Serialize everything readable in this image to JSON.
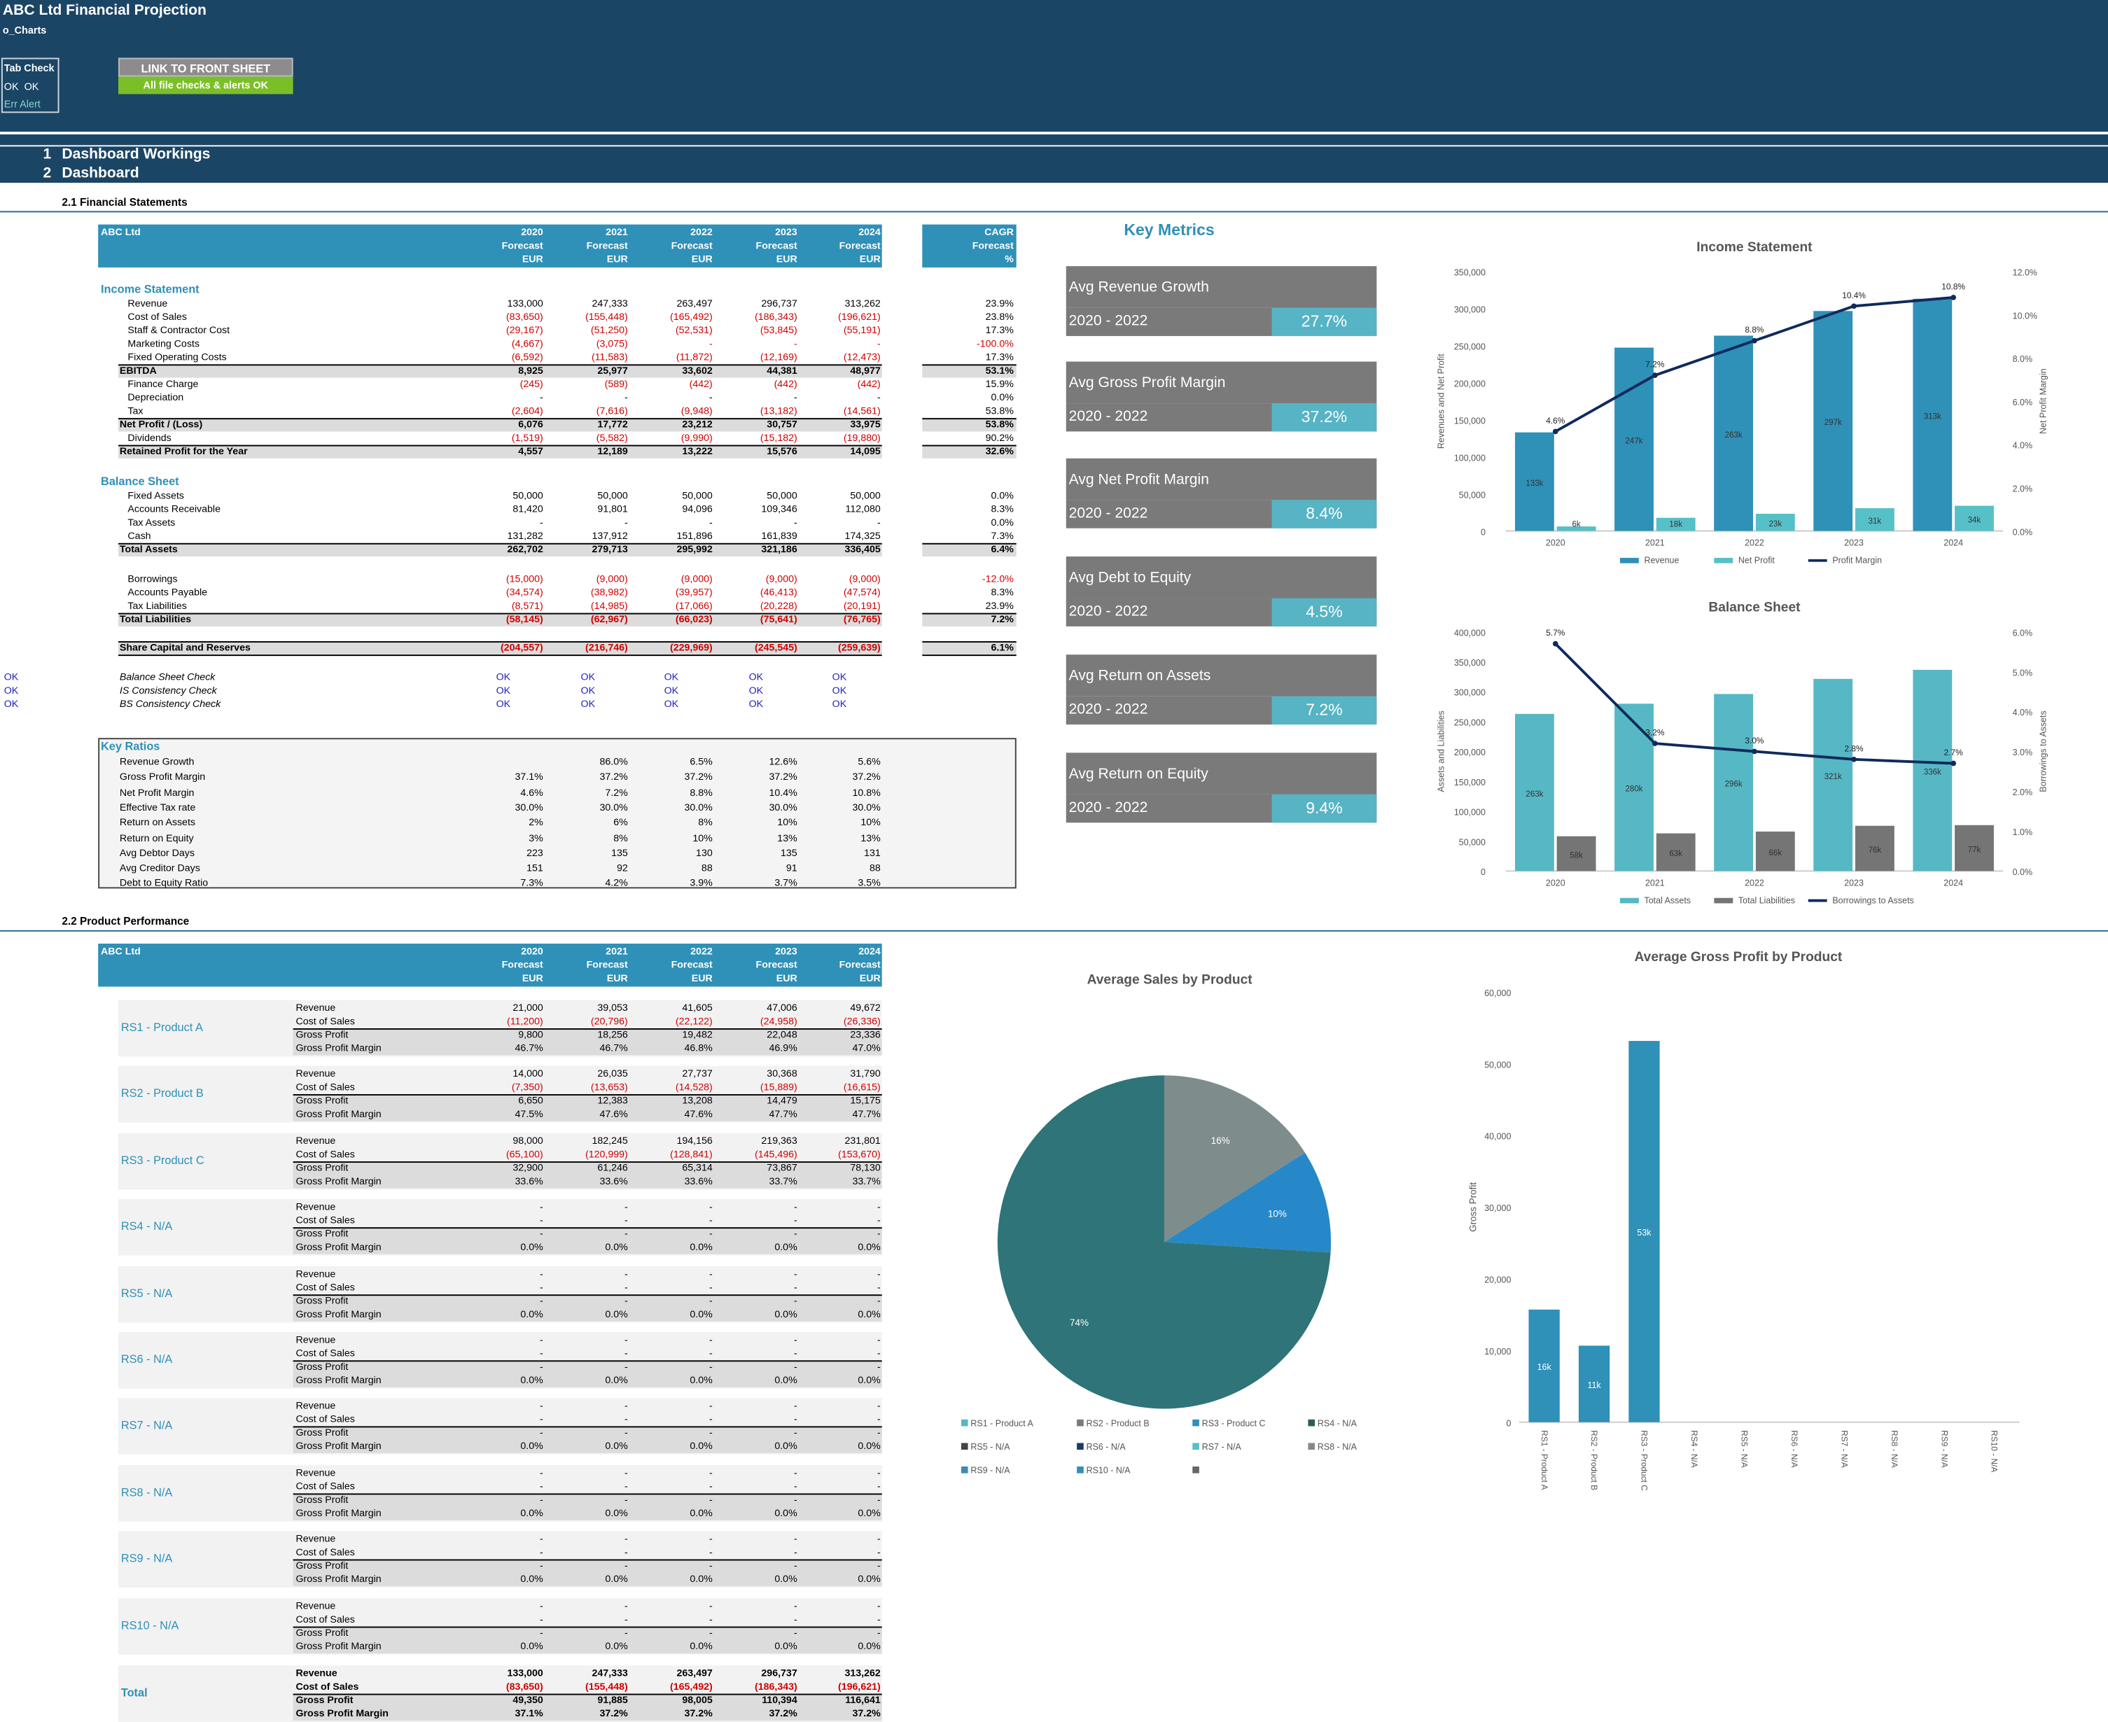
{
  "header": {
    "title": "ABC Ltd Financial Projection",
    "sheet": "o_Charts",
    "tab_check_label": "Tab Check",
    "tab_check_ok1": "OK",
    "tab_check_ok2": "OK",
    "err_alert": "Err Alert",
    "link_button": "LINK TO FRONT SHEET",
    "alert_status": "All file checks & alerts OK"
  },
  "nav": {
    "items": [
      {
        "num": "1",
        "label": "Dashboard Workings"
      },
      {
        "num": "2",
        "label": "Dashboard"
      }
    ]
  },
  "sections": {
    "fs": "2.1 Financial Statements",
    "pp": "2.2 Product Performance"
  },
  "fs": {
    "company": "ABC Ltd",
    "years": [
      "2020",
      "2021",
      "2022",
      "2023",
      "2024"
    ],
    "forecast": "Forecast",
    "eur": "EUR",
    "cagr": "CAGR",
    "pct": "%",
    "is_title": "Income Statement",
    "is_rows": [
      {
        "l": "Revenue",
        "v": [
          "133,000",
          "247,333",
          "263,497",
          "296,737",
          "313,262"
        ],
        "c": "23.9%"
      },
      {
        "l": "Cost of Sales",
        "v": [
          "(83,650)",
          "(155,448)",
          "(165,492)",
          "(186,343)",
          "(196,621)"
        ],
        "c": "23.8%",
        "red": true
      },
      {
        "l": "Staff & Contractor Cost",
        "v": [
          "(29,167)",
          "(51,250)",
          "(52,531)",
          "(53,845)",
          "(55,191)"
        ],
        "c": "17.3%",
        "red": true
      },
      {
        "l": "Marketing Costs",
        "v": [
          "(4,667)",
          "(3,075)",
          "-",
          "-",
          "-"
        ],
        "c": "-100.0%",
        "red": true
      },
      {
        "l": "Fixed Operating Costs",
        "v": [
          "(6,592)",
          "(11,583)",
          "(11,872)",
          "(12,169)",
          "(12,473)"
        ],
        "c": "17.3%",
        "red": true
      },
      {
        "l": "EBITDA",
        "v": [
          "8,925",
          "25,977",
          "33,602",
          "44,381",
          "48,977"
        ],
        "c": "53.1%",
        "total": true
      },
      {
        "l": "Finance Charge",
        "v": [
          "(245)",
          "(589)",
          "(442)",
          "(442)",
          "(442)"
        ],
        "c": "15.9%",
        "red": true
      },
      {
        "l": "Depreciation",
        "v": [
          "-",
          "-",
          "-",
          "-",
          "-"
        ],
        "c": "0.0%"
      },
      {
        "l": "Tax",
        "v": [
          "(2,604)",
          "(7,616)",
          "(9,948)",
          "(13,182)",
          "(14,561)"
        ],
        "c": "53.8%",
        "red": true
      },
      {
        "l": "Net Profit / (Loss)",
        "v": [
          "6,076",
          "17,772",
          "23,212",
          "30,757",
          "33,975"
        ],
        "c": "53.8%",
        "total": true
      },
      {
        "l": "Dividends",
        "v": [
          "(1,519)",
          "(5,582)",
          "(9,990)",
          "(15,182)",
          "(19,880)"
        ],
        "c": "90.2%",
        "red": true
      },
      {
        "l": "Retained Profit for the Year",
        "v": [
          "4,557",
          "12,189",
          "13,222",
          "15,576",
          "14,095"
        ],
        "c": "32.6%",
        "total": true
      }
    ],
    "bs_title": "Balance Sheet",
    "bs_rows": [
      {
        "l": "Fixed Assets",
        "v": [
          "50,000",
          "50,000",
          "50,000",
          "50,000",
          "50,000"
        ],
        "c": "0.0%"
      },
      {
        "l": "Accounts Receivable",
        "v": [
          "81,420",
          "91,801",
          "94,096",
          "109,346",
          "112,080"
        ],
        "c": "8.3%"
      },
      {
        "l": "Tax Assets",
        "v": [
          "-",
          "-",
          "-",
          "-",
          "-"
        ],
        "c": "0.0%"
      },
      {
        "l": "Cash",
        "v": [
          "131,282",
          "137,912",
          "151,896",
          "161,839",
          "174,325"
        ],
        "c": "7.3%"
      },
      {
        "l": "Total Assets",
        "v": [
          "262,702",
          "279,713",
          "295,992",
          "321,186",
          "336,405"
        ],
        "c": "6.4%",
        "total": true
      }
    ],
    "liab_rows": [
      {
        "l": "Borrowings",
        "v": [
          "(15,000)",
          "(9,000)",
          "(9,000)",
          "(9,000)",
          "(9,000)"
        ],
        "c": "-12.0%",
        "red": true
      },
      {
        "l": "Accounts Payable",
        "v": [
          "(34,574)",
          "(38,982)",
          "(39,957)",
          "(46,413)",
          "(47,574)"
        ],
        "c": "8.3%",
        "red": true
      },
      {
        "l": "Tax Liabilities",
        "v": [
          "(8,571)",
          "(14,985)",
          "(17,066)",
          "(20,228)",
          "(20,191)"
        ],
        "c": "23.9%",
        "red": true
      },
      {
        "l": "Total Liabilities",
        "v": [
          "(58,145)",
          "(62,967)",
          "(66,023)",
          "(75,641)",
          "(76,765)"
        ],
        "c": "7.2%",
        "total": true,
        "red": true
      }
    ],
    "equity": {
      "l": "Share Capital and Reserves",
      "v": [
        "(204,557)",
        "(216,746)",
        "(229,969)",
        "(245,545)",
        "(259,639)"
      ],
      "c": "6.1%"
    },
    "checks": [
      {
        "l": "Balance Sheet Check",
        "side": "OK",
        "v": [
          "OK",
          "OK",
          "OK",
          "OK",
          "OK"
        ]
      },
      {
        "l": "IS Consistency Check",
        "side": "OK",
        "v": [
          "OK",
          "OK",
          "OK",
          "OK",
          "OK"
        ]
      },
      {
        "l": "BS Consistency Check",
        "side": "OK",
        "v": [
          "OK",
          "OK",
          "OK",
          "OK",
          "OK"
        ]
      }
    ],
    "kr_title": "Key Ratios",
    "kr_rows": [
      {
        "l": "Revenue Growth",
        "v": [
          "",
          "86.0%",
          "6.5%",
          "12.6%",
          "5.6%"
        ]
      },
      {
        "l": "Gross Profit Margin",
        "v": [
          "37.1%",
          "37.2%",
          "37.2%",
          "37.2%",
          "37.2%"
        ]
      },
      {
        "l": "Net Profit Margin",
        "v": [
          "4.6%",
          "7.2%",
          "8.8%",
          "10.4%",
          "10.8%"
        ]
      },
      {
        "l": "Effective Tax rate",
        "v": [
          "30.0%",
          "30.0%",
          "30.0%",
          "30.0%",
          "30.0%"
        ]
      },
      {
        "l": "Return on Assets",
        "v": [
          "2%",
          "6%",
          "8%",
          "10%",
          "10%"
        ]
      },
      {
        "l": "Return on Equity",
        "v": [
          "3%",
          "8%",
          "10%",
          "13%",
          "13%"
        ]
      },
      {
        "l": "Avg Debtor Days",
        "v": [
          "223",
          "135",
          "130",
          "135",
          "131"
        ]
      },
      {
        "l": "Avg Creditor Days",
        "v": [
          "151",
          "92",
          "88",
          "91",
          "88"
        ]
      },
      {
        "l": "Debt to Equity Ratio",
        "v": [
          "7.3%",
          "4.2%",
          "3.9%",
          "3.7%",
          "3.5%"
        ]
      }
    ]
  },
  "metrics": {
    "title": "Key Metrics",
    "items": [
      {
        "label": "Avg Revenue Growth",
        "period": "2020 - 2022",
        "value": "27.7%"
      },
      {
        "label": "Avg Gross Profit Margin",
        "period": "2020 - 2022",
        "value": "37.2%"
      },
      {
        "label": "Avg Net Profit Margin",
        "period": "2020 - 2022",
        "value": "8.4%"
      },
      {
        "label": "Avg Debt to Equity",
        "period": "2020 - 2022",
        "value": "4.5%"
      },
      {
        "label": "Avg Return on Assets",
        "period": "2020 - 2022",
        "value": "7.2%"
      },
      {
        "label": "Avg Return on Equity",
        "period": "2020 - 2022",
        "value": "9.4%"
      }
    ]
  },
  "products": {
    "row_labels": [
      "Revenue",
      "Cost of Sales",
      "Gross Profit",
      "Gross Profit Margin"
    ],
    "items": [
      {
        "name": "RS1 - Product A",
        "rev": [
          "21,000",
          "39,053",
          "41,605",
          "47,006",
          "49,672"
        ],
        "cos": [
          "(11,200)",
          "(20,796)",
          "(22,122)",
          "(24,958)",
          "(26,336)"
        ],
        "gp": [
          "9,800",
          "18,256",
          "19,482",
          "22,048",
          "23,336"
        ],
        "gpm": [
          "46.7%",
          "46.7%",
          "46.8%",
          "46.9%",
          "47.0%"
        ]
      },
      {
        "name": "RS2 - Product B",
        "rev": [
          "14,000",
          "26,035",
          "27,737",
          "30,368",
          "31,790"
        ],
        "cos": [
          "(7,350)",
          "(13,653)",
          "(14,528)",
          "(15,889)",
          "(16,615)"
        ],
        "gp": [
          "6,650",
          "12,383",
          "13,208",
          "14,479",
          "15,175"
        ],
        "gpm": [
          "47.5%",
          "47.6%",
          "47.6%",
          "47.7%",
          "47.7%"
        ]
      },
      {
        "name": "RS3 - Product C",
        "rev": [
          "98,000",
          "182,245",
          "194,156",
          "219,363",
          "231,801"
        ],
        "cos": [
          "(65,100)",
          "(120,999)",
          "(128,841)",
          "(145,496)",
          "(153,670)"
        ],
        "gp": [
          "32,900",
          "61,246",
          "65,314",
          "73,867",
          "78,130"
        ],
        "gpm": [
          "33.6%",
          "33.6%",
          "33.6%",
          "33.7%",
          "33.7%"
        ]
      },
      {
        "name": "RS4 - N/A",
        "rev": [
          "-",
          "-",
          "-",
          "-",
          "-"
        ],
        "cos": [
          "-",
          "-",
          "-",
          "-",
          "-"
        ],
        "gp": [
          "-",
          "-",
          "-",
          "-",
          "-"
        ],
        "gpm": [
          "0.0%",
          "0.0%",
          "0.0%",
          "0.0%",
          "0.0%"
        ]
      },
      {
        "name": "RS5 - N/A",
        "rev": [
          "-",
          "-",
          "-",
          "-",
          "-"
        ],
        "cos": [
          "-",
          "-",
          "-",
          "-",
          "-"
        ],
        "gp": [
          "-",
          "-",
          "-",
          "-",
          "-"
        ],
        "gpm": [
          "0.0%",
          "0.0%",
          "0.0%",
          "0.0%",
          "0.0%"
        ]
      },
      {
        "name": "RS6 - N/A",
        "rev": [
          "-",
          "-",
          "-",
          "-",
          "-"
        ],
        "cos": [
          "-",
          "-",
          "-",
          "-",
          "-"
        ],
        "gp": [
          "-",
          "-",
          "-",
          "-",
          "-"
        ],
        "gpm": [
          "0.0%",
          "0.0%",
          "0.0%",
          "0.0%",
          "0.0%"
        ]
      },
      {
        "name": "RS7 - N/A",
        "rev": [
          "-",
          "-",
          "-",
          "-",
          "-"
        ],
        "cos": [
          "-",
          "-",
          "-",
          "-",
          "-"
        ],
        "gp": [
          "-",
          "-",
          "-",
          "-",
          "-"
        ],
        "gpm": [
          "0.0%",
          "0.0%",
          "0.0%",
          "0.0%",
          "0.0%"
        ]
      },
      {
        "name": "RS8 - N/A",
        "rev": [
          "-",
          "-",
          "-",
          "-",
          "-"
        ],
        "cos": [
          "-",
          "-",
          "-",
          "-",
          "-"
        ],
        "gp": [
          "-",
          "-",
          "-",
          "-",
          "-"
        ],
        "gpm": [
          "0.0%",
          "0.0%",
          "0.0%",
          "0.0%",
          "0.0%"
        ]
      },
      {
        "name": "RS9 - N/A",
        "rev": [
          "-",
          "-",
          "-",
          "-",
          "-"
        ],
        "cos": [
          "-",
          "-",
          "-",
          "-",
          "-"
        ],
        "gp": [
          "-",
          "-",
          "-",
          "-",
          "-"
        ],
        "gpm": [
          "0.0%",
          "0.0%",
          "0.0%",
          "0.0%",
          "0.0%"
        ]
      },
      {
        "name": "RS10 - N/A",
        "rev": [
          "-",
          "-",
          "-",
          "-",
          "-"
        ],
        "cos": [
          "-",
          "-",
          "-",
          "-",
          "-"
        ],
        "gp": [
          "-",
          "-",
          "-",
          "-",
          "-"
        ],
        "gpm": [
          "0.0%",
          "0.0%",
          "0.0%",
          "0.0%",
          "0.0%"
        ]
      }
    ],
    "total": {
      "name": "Total",
      "rev": [
        "133,000",
        "247,333",
        "263,497",
        "296,737",
        "313,262"
      ],
      "cos": [
        "(83,650)",
        "(155,448)",
        "(165,492)",
        "(186,343)",
        "(196,621)"
      ],
      "gp": [
        "49,350",
        "91,885",
        "98,005",
        "110,394",
        "116,641"
      ],
      "gpm": [
        "37.1%",
        "37.2%",
        "37.2%",
        "37.2%",
        "37.2%"
      ]
    }
  },
  "chart_data": [
    {
      "type": "bar",
      "title": "Income Statement",
      "categories": [
        "2020",
        "2021",
        "2022",
        "2023",
        "2024"
      ],
      "ylabel": "Revenues and Net Profit",
      "y2label": "Net Profit Margin",
      "ylim": [
        0,
        350000
      ],
      "ticks": [
        "0",
        "50,000",
        "100,000",
        "150,000",
        "200,000",
        "250,000",
        "300,000",
        "350,000"
      ],
      "y2lim": [
        0,
        0.12
      ],
      "ticks2": [
        "0.0%",
        "2.0%",
        "4.0%",
        "6.0%",
        "8.0%",
        "10.0%",
        "12.0%"
      ],
      "series": [
        {
          "name": "Revenue",
          "values": [
            133000,
            247333,
            263497,
            296737,
            313262
          ],
          "labels": [
            "133k",
            "247k",
            "263k",
            "297k",
            "313k"
          ],
          "color": "#2f90b8"
        },
        {
          "name": "Net Profit",
          "values": [
            6076,
            17772,
            23212,
            30757,
            33975
          ],
          "labels": [
            "6k",
            "18k",
            "23k",
            "31k",
            "34k"
          ],
          "color": "#56c0c8"
        }
      ],
      "line": {
        "name": "Profit Margin",
        "values": [
          0.046,
          0.072,
          0.088,
          0.104,
          0.108
        ],
        "labels": [
          "4.6%",
          "7.2%",
          "8.8%",
          "10.4%",
          "10.8%"
        ],
        "color": "#0f2a5c"
      },
      "legend": "bottom"
    },
    {
      "type": "bar",
      "title": "Balance Sheet",
      "categories": [
        "2020",
        "2021",
        "2022",
        "2023",
        "2024"
      ],
      "ylabel": "Assets and Liabilities",
      "y2label": "Borrowings to Assets",
      "ylim": [
        0,
        400000
      ],
      "ticks": [
        "0",
        "50,000",
        "100,000",
        "150,000",
        "200,000",
        "250,000",
        "300,000",
        "350,000",
        "400,000"
      ],
      "y2lim": [
        0,
        0.06
      ],
      "ticks2": [
        "0.0%",
        "1.0%",
        "2.0%",
        "3.0%",
        "4.0%",
        "5.0%",
        "6.0%"
      ],
      "series": [
        {
          "name": "Total Assets",
          "values": [
            262702,
            279713,
            295992,
            321186,
            336405
          ],
          "labels": [
            "263k",
            "280k",
            "296k",
            "321k",
            "336k"
          ],
          "color": "#56b8c4"
        },
        {
          "name": "Total Liabilities",
          "values": [
            58145,
            62967,
            66023,
            75641,
            76765
          ],
          "labels": [
            "58k",
            "63k",
            "66k",
            "76k",
            "77k"
          ],
          "color": "#757575"
        }
      ],
      "line": {
        "name": "Borrowings to Assets",
        "values": [
          0.057,
          0.032,
          0.03,
          0.028,
          0.027
        ],
        "labels": [
          "5.7%",
          "3.2%",
          "3.0%",
          "2.8%",
          "2.7%"
        ],
        "color": "#0f2a5c"
      },
      "legend": "bottom"
    },
    {
      "type": "pie",
      "title": "Average Sales by Product",
      "slices": [
        {
          "name": "RS1 - Product A",
          "value": 16,
          "label": "16%",
          "color": "#7f8c8c"
        },
        {
          "name": "RS2 - Product B",
          "value": 10,
          "label": "10%",
          "color": "#2688c8"
        },
        {
          "name": "RS3 - Product C",
          "value": 74,
          "label": "74%",
          "color": "#2e7478"
        }
      ],
      "legend": [
        "RS1 - Product A",
        "RS2 - Product B",
        "RS3 - Product C",
        "RS4 - N/A",
        "RS5 - N/A",
        "RS6 - N/A",
        "RS7 - N/A",
        "RS8 - N/A",
        "RS9 - N/A",
        "RS10 - N/A",
        ""
      ],
      "legend_colors": [
        "#56b8c4",
        "#7a7a7a",
        "#2f90b8",
        "#2e5a5a",
        "#444444",
        "#1b3a66",
        "#56c0c8",
        "#888888",
        "#3a8ac0",
        "#2f90b8",
        "#666666"
      ]
    },
    {
      "type": "bar",
      "title": "Average Gross Profit by Product",
      "ylabel": "Gross Profit",
      "ylim": [
        0,
        60000
      ],
      "ticks": [
        "0",
        "10,000",
        "20,000",
        "30,000",
        "40,000",
        "50,000",
        "60,000"
      ],
      "categories": [
        "RS1 - Product A",
        "RS2 - Product B",
        "RS3 - Product C",
        "RS4 - N/A",
        "RS5 - N/A",
        "RS6 - N/A",
        "RS7 - N/A",
        "RS8 - N/A",
        "RS9 - N/A",
        "RS10 - N/A"
      ],
      "values": [
        15702,
        10670,
        53175,
        0,
        0,
        0,
        0,
        0,
        0,
        0
      ],
      "labels": [
        "16k",
        "11k",
        "53k",
        "",
        "",
        "",
        "",
        "",
        "",
        ""
      ],
      "color": "#2f90b8"
    }
  ]
}
